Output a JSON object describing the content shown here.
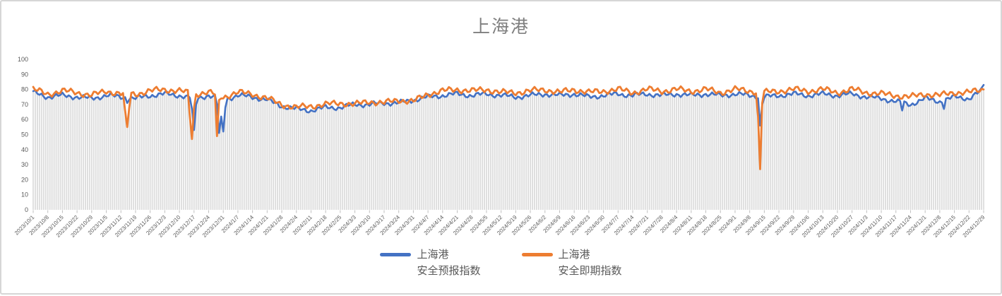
{
  "chart_data": {
    "type": "line",
    "title": "上海港",
    "ylim": [
      0,
      100
    ],
    "ytick_step": 10,
    "grid": "vertical-drop-lines-per-day",
    "legend_position": "bottom",
    "x_label_interval_days": 7,
    "n_points": 456,
    "title_color": "#7f7f7f",
    "axis_text_color": "#595959",
    "dropline_color": "#dcdcdc",
    "tick_color": "#bfbfbf",
    "x_labels": [
      "2023/10/1",
      "2023/10/8",
      "2023/10/15",
      "2023/10/22",
      "2023/10/29",
      "2023/11/5",
      "2023/11/12",
      "2023/11/19",
      "2023/11/26",
      "2023/12/3",
      "2023/12/10",
      "2023/12/17",
      "2023/12/24",
      "2023/12/31",
      "2024/1/7",
      "2024/1/14",
      "2024/1/21",
      "2024/1/28",
      "2024/2/4",
      "2024/2/11",
      "2024/2/18",
      "2024/2/25",
      "2024/3/3",
      "2024/3/10",
      "2024/3/17",
      "2024/3/24",
      "2024/3/31",
      "2024/4/7",
      "2024/4/14",
      "2024/4/21",
      "2024/4/28",
      "2024/5/5",
      "2024/5/12",
      "2024/5/19",
      "2024/5/26",
      "2024/6/2",
      "2024/6/9",
      "2024/6/16",
      "2024/6/23",
      "2024/6/30",
      "2024/7/7",
      "2024/7/14",
      "2024/7/21",
      "2024/7/28",
      "2024/8/4",
      "2024/8/11",
      "2024/8/18",
      "2024/8/25",
      "2024/9/1",
      "2024/9/8",
      "2024/9/15",
      "2024/9/22",
      "2024/9/29",
      "2024/10/6",
      "2024/10/13",
      "2024/10/20",
      "2024/10/27",
      "2024/11/3",
      "2024/11/10",
      "2024/11/17",
      "2024/11/24",
      "2024/12/1",
      "2024/12/8",
      "2024/12/15",
      "2024/12/22",
      "2024/12/29"
    ],
    "series": [
      {
        "key": "blue",
        "name_line1": "上海港",
        "name_line2": "安全预报指数",
        "color": "#4472C4",
        "stroke_width": 2.6,
        "weekly_values": [
          78,
          75,
          76,
          75,
          74,
          76,
          75,
          74,
          76,
          77,
          76,
          74,
          76,
          73,
          76,
          75,
          73,
          69,
          67,
          66,
          68,
          68,
          70,
          70,
          71,
          71,
          73,
          75,
          76,
          77,
          76,
          77,
          76,
          75,
          76,
          77,
          76,
          77,
          75,
          76,
          77,
          76,
          77,
          76,
          77,
          76,
          77,
          76,
          77,
          76,
          75,
          76,
          77,
          76,
          77,
          76,
          77,
          75,
          74,
          72,
          70,
          74,
          72,
          75,
          74,
          80
        ],
        "jitter": {
          "a1": 1.1,
          "f1": 1.9,
          "p1": 0.0,
          "a2": 0.9,
          "f2": 0.5,
          "p2": 1.3
        }
      },
      {
        "key": "orange",
        "name_line1": "上海港",
        "name_line2": "安全即期指数",
        "color": "#ED7D31",
        "stroke_width": 2.8,
        "weekly_values": [
          80,
          77,
          79,
          78,
          76,
          79,
          77,
          77,
          79,
          80,
          79,
          77,
          78,
          75,
          78,
          77,
          74,
          70,
          68,
          69,
          70,
          71,
          70,
          72,
          71,
          73,
          72,
          77,
          79,
          80,
          79,
          80,
          78,
          78,
          79,
          80,
          78,
          80,
          78,
          79,
          80,
          78,
          80,
          79,
          80,
          79,
          80,
          78,
          80,
          79,
          78,
          79,
          80,
          79,
          80,
          78,
          80,
          78,
          77,
          76,
          75,
          77,
          76,
          78,
          78,
          80
        ],
        "jitter": {
          "a1": 1.4,
          "f1": 1.7,
          "p1": 2.1,
          "a2": 1.0,
          "f2": 0.45,
          "p2": 0.5
        }
      }
    ],
    "anomalies": {
      "blue": [
        [
          45,
          71
        ],
        [
          76,
          67
        ],
        [
          77,
          53
        ],
        [
          78,
          70
        ],
        [
          88,
          70
        ],
        [
          89,
          51
        ],
        [
          90,
          62
        ],
        [
          91,
          52
        ],
        [
          92,
          68
        ],
        [
          348,
          56
        ],
        [
          349,
          70
        ],
        [
          416,
          66
        ],
        [
          436,
          67
        ],
        [
          455,
          83
        ]
      ],
      "orange": [
        [
          44,
          66
        ],
        [
          45,
          55
        ],
        [
          46,
          68
        ],
        [
          75,
          62
        ],
        [
          76,
          47
        ],
        [
          77,
          68
        ],
        [
          88,
          49
        ],
        [
          89,
          73
        ],
        [
          347,
          62
        ],
        [
          348,
          27
        ],
        [
          349,
          71
        ],
        [
          455,
          80
        ]
      ]
    }
  }
}
